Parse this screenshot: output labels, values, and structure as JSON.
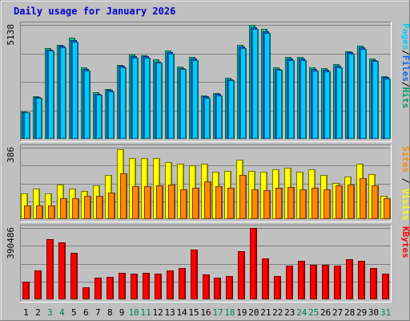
{
  "chart_data": {
    "type": "bar",
    "title": "Daily usage for January 2026",
    "x": [
      "1",
      "2",
      "3",
      "4",
      "5",
      "6",
      "7",
      "8",
      "9",
      "10",
      "11",
      "12",
      "13",
      "14",
      "15",
      "16",
      "17",
      "18",
      "19",
      "20",
      "21",
      "22",
      "23",
      "24",
      "25",
      "26",
      "27",
      "28",
      "29",
      "30",
      "31"
    ],
    "weekend_days": [
      3,
      4,
      10,
      11,
      17,
      18,
      24,
      25,
      31
    ],
    "panels": [
      {
        "id": "hits",
        "scale_label": "5138",
        "ymax": 5138,
        "label_parts": [
          "Pages",
          "/",
          "Files",
          "/",
          "Hits"
        ],
        "label_colors": [
          "#00ccff",
          "#000000",
          "#0066ff",
          "#000000",
          "#009966"
        ],
        "series": [
          {
            "name": "Hits",
            "color": "#00cc99",
            "values": [
              1230,
              1900,
              4100,
              4250,
              4570,
              3220,
              2090,
              2250,
              3330,
              3790,
              3780,
              3570,
              3980,
              3250,
              3690,
              1950,
              2070,
              2750,
              4230,
              5130,
              4940,
              3230,
              3690,
              3690,
              3210,
              3170,
              3350,
              3960,
              4200,
              3630,
              2830
            ]
          },
          {
            "name": "Files",
            "color": "#0066ff",
            "values": [
              1200,
              1870,
              4020,
              4190,
              4460,
              3150,
              2030,
              2190,
              3280,
              3720,
              3710,
              3490,
              3910,
              3190,
              3610,
              1900,
              2010,
              2690,
              4150,
              5030,
              4850,
              3160,
              3610,
              3620,
              3140,
              3100,
              3280,
              3890,
              4120,
              3560,
              2770
            ]
          },
          {
            "name": "Pages",
            "color": "#00ccff",
            "values": [
              1180,
              1850,
              3970,
              4130,
              4370,
              3080,
              1980,
              2150,
              3230,
              3660,
              3650,
              3430,
              3850,
              3140,
              3540,
              1860,
              1960,
              2640,
              4080,
              4960,
              4780,
              3110,
              3560,
              3560,
              3090,
              3050,
              3230,
              3830,
              4050,
              3500,
              2720
            ]
          }
        ]
      },
      {
        "id": "visits",
        "scale_label": "386",
        "ymax": 386,
        "label_parts": [
          "Sites",
          " / ",
          "Visits"
        ],
        "label_colors": [
          "#ff8800",
          "#000000",
          "#ffff00"
        ],
        "series": [
          {
            "name": "Visits",
            "color": "#ffff00",
            "values": [
              140,
              166,
              140,
              188,
              166,
              150,
              183,
              237,
              378,
              330,
              328,
              330,
              310,
              298,
              290,
              300,
              255,
              259,
              320,
              262,
              255,
              268,
              279,
              256,
              268,
              240,
              197,
              232,
              300,
              242,
              125
            ]
          },
          {
            "name": "Sites",
            "color": "#ff8800",
            "values": [
              73,
              73,
              73,
              113,
              113,
              124,
              124,
              143,
              248,
              176,
              176,
              183,
              188,
              162,
              168,
              203,
              176,
              168,
              239,
              162,
              157,
              168,
              174,
              159,
              170,
              162,
              183,
              188,
              222,
              180,
              113
            ]
          }
        ]
      },
      {
        "id": "kbytes",
        "scale_label": "390486",
        "ymax": 390486,
        "label_parts": [
          "KBytes"
        ],
        "label_colors": [
          "#ff0000"
        ],
        "series": [
          {
            "name": "KBytes",
            "color": "#ff0000",
            "values": [
              98000,
              160000,
              330000,
              310000,
              256000,
              64000,
              120000,
              124000,
              146000,
              142000,
              146000,
              142000,
              160000,
              170000,
              274000,
              138000,
              120000,
              128000,
              262000,
              390000,
              222000,
              126000,
              186000,
              210000,
              188000,
              188000,
              186000,
              218000,
              210000,
              170000,
              142000
            ]
          }
        ]
      }
    ]
  }
}
